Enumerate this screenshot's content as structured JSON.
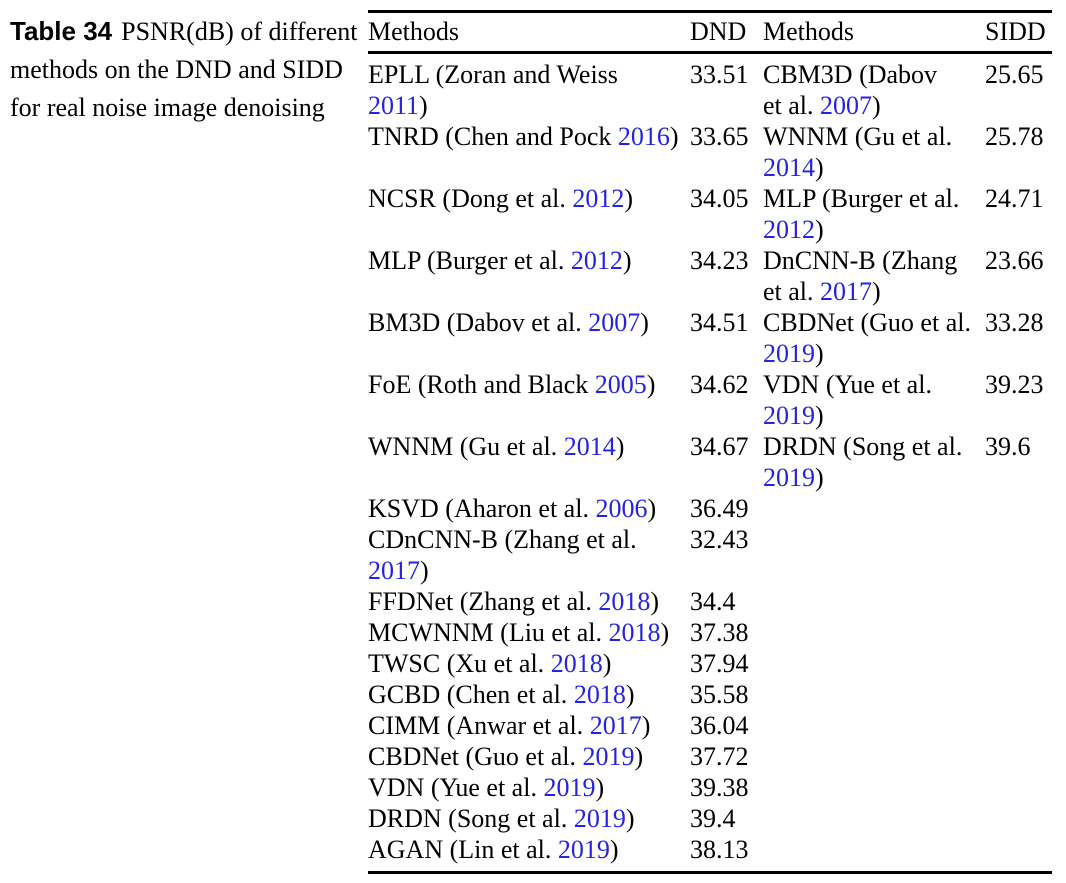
{
  "caption": {
    "label": "Table 34",
    "lines": [
      "PSNR(dB) of different",
      "methods on the DND and SIDD",
      "for real noise image denoising"
    ]
  },
  "colors": {
    "link_blue": "#2424e0",
    "text": "#000000",
    "rule": "#000000",
    "background": "#ffffff"
  },
  "table": {
    "headers": [
      "Methods",
      "DND",
      "Methods",
      "SIDD"
    ],
    "rows": [
      {
        "method1": [
          {
            "t": "EPLL (Zoran and Weiss"
          },
          {
            "br": true
          },
          {
            "t": "2011",
            "link": true
          },
          {
            "t": ")"
          }
        ],
        "dnd": "33.51",
        "method2": [
          {
            "t": "CBM3D (Dabov"
          },
          {
            "br": true
          },
          {
            "t": "et al. "
          },
          {
            "t": "2007",
            "link": true
          },
          {
            "t": ")"
          }
        ],
        "sidd": "25.65"
      },
      {
        "method1": [
          {
            "t": "TNRD (Chen and Pock "
          },
          {
            "t": "2016",
            "link": true
          },
          {
            "t": ")"
          }
        ],
        "dnd": "33.65",
        "method2": [
          {
            "t": "WNNM (Gu et al."
          },
          {
            "br": true
          },
          {
            "t": "2014",
            "link": true
          },
          {
            "t": ")"
          }
        ],
        "sidd": "25.78"
      },
      {
        "method1": [
          {
            "t": "NCSR (Dong et al. "
          },
          {
            "t": "2012",
            "link": true
          },
          {
            "t": ")"
          }
        ],
        "dnd": "34.05",
        "method2": [
          {
            "t": "MLP (Burger et al."
          },
          {
            "br": true
          },
          {
            "t": "2012",
            "link": true
          },
          {
            "t": ")"
          }
        ],
        "sidd": "24.71"
      },
      {
        "method1": [
          {
            "t": "MLP (Burger et al. "
          },
          {
            "t": "2012",
            "link": true
          },
          {
            "t": ")"
          }
        ],
        "dnd": "34.23",
        "method2": [
          {
            "t": "DnCNN-B (Zhang"
          },
          {
            "br": true
          },
          {
            "t": "et al. "
          },
          {
            "t": "2017",
            "link": true
          },
          {
            "t": ")"
          }
        ],
        "sidd": "23.66"
      },
      {
        "method1": [
          {
            "t": "BM3D (Dabov et al. "
          },
          {
            "t": "2007",
            "link": true
          },
          {
            "t": ")"
          }
        ],
        "dnd": "34.51",
        "method2": [
          {
            "t": "CBDNet (Guo et al."
          },
          {
            "br": true
          },
          {
            "t": "2019",
            "link": true
          },
          {
            "t": ")"
          }
        ],
        "sidd": "33.28"
      },
      {
        "method1": [
          {
            "t": "FoE (Roth and Black "
          },
          {
            "t": "2005",
            "link": true
          },
          {
            "t": ")"
          }
        ],
        "dnd": "34.62",
        "method2": [
          {
            "t": "VDN (Yue et al."
          },
          {
            "br": true
          },
          {
            "t": "2019",
            "link": true
          },
          {
            "t": ")"
          }
        ],
        "sidd": "39.23"
      },
      {
        "method1": [
          {
            "t": "WNNM (Gu et al. "
          },
          {
            "t": "2014",
            "link": true
          },
          {
            "t": ")"
          }
        ],
        "dnd": "34.67",
        "method2": [
          {
            "t": "DRDN (Song et al."
          },
          {
            "br": true
          },
          {
            "t": "2019",
            "link": true
          },
          {
            "t": ")"
          }
        ],
        "sidd": "39.6"
      },
      {
        "method1": [
          {
            "t": "KSVD (Aharon et al. "
          },
          {
            "t": "2006",
            "link": true
          },
          {
            "t": ")"
          }
        ],
        "dnd": "36.49",
        "method2": null,
        "sidd": null
      },
      {
        "method1": [
          {
            "t": "CDnCNN-B (Zhang et al."
          },
          {
            "br": true
          },
          {
            "t": "2017",
            "link": true
          },
          {
            "t": ")"
          }
        ],
        "dnd": "32.43",
        "method2": null,
        "sidd": null
      },
      {
        "method1": [
          {
            "t": "FFDNet (Zhang et al. "
          },
          {
            "t": "2018",
            "link": true
          },
          {
            "t": ")"
          }
        ],
        "dnd": "34.4",
        "method2": null,
        "sidd": null
      },
      {
        "method1": [
          {
            "t": "MCWNNM (Liu et al. "
          },
          {
            "t": "2018",
            "link": true
          },
          {
            "t": ")"
          }
        ],
        "dnd": "37.38",
        "method2": null,
        "sidd": null
      },
      {
        "method1": [
          {
            "t": "TWSC (Xu et al. "
          },
          {
            "t": "2018",
            "link": true
          },
          {
            "t": ")"
          }
        ],
        "dnd": "37.94",
        "method2": null,
        "sidd": null
      },
      {
        "method1": [
          {
            "t": "GCBD (Chen et al. "
          },
          {
            "t": "2018",
            "link": true
          },
          {
            "t": ")"
          }
        ],
        "dnd": "35.58",
        "method2": null,
        "sidd": null
      },
      {
        "method1": [
          {
            "t": "CIMM (Anwar et al. "
          },
          {
            "t": "2017",
            "link": true
          },
          {
            "t": ")"
          }
        ],
        "dnd": "36.04",
        "method2": null,
        "sidd": null
      },
      {
        "method1": [
          {
            "t": "CBDNet (Guo et al. "
          },
          {
            "t": "2019",
            "link": true
          },
          {
            "t": ")"
          }
        ],
        "dnd": "37.72",
        "method2": null,
        "sidd": null
      },
      {
        "method1": [
          {
            "t": "VDN (Yue et al. "
          },
          {
            "t": "2019",
            "link": true
          },
          {
            "t": ")"
          }
        ],
        "dnd": "39.38",
        "method2": null,
        "sidd": null
      },
      {
        "method1": [
          {
            "t": "DRDN (Song et al. "
          },
          {
            "t": "2019",
            "link": true
          },
          {
            "t": ")"
          }
        ],
        "dnd": "39.4",
        "method2": null,
        "sidd": null
      },
      {
        "method1": [
          {
            "t": "AGAN (Lin et al. "
          },
          {
            "t": "2019",
            "link": true
          },
          {
            "t": ")"
          }
        ],
        "dnd": "38.13",
        "method2": null,
        "sidd": null
      }
    ]
  }
}
